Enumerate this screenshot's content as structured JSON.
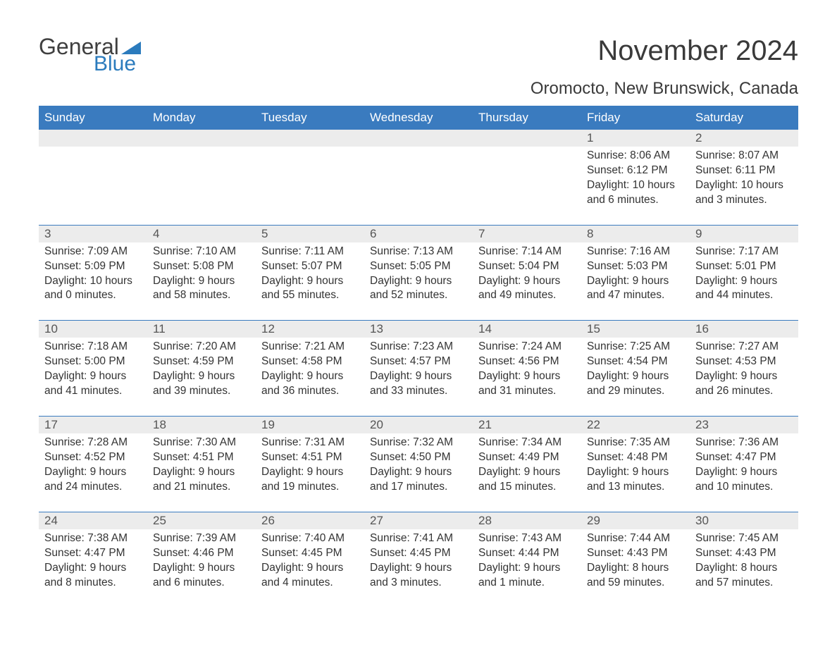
{
  "logo": {
    "word1": "General",
    "word2": "Blue"
  },
  "title": "November 2024",
  "location": "Oromocto, New Brunswick, Canada",
  "colors": {
    "header_bg": "#3a7bbf",
    "header_text": "#ffffff",
    "daynum_bg": "#ececec",
    "row_border": "#3a7bbf",
    "logo_blue": "#2b7bbd",
    "text": "#333333"
  },
  "day_headers": [
    "Sunday",
    "Monday",
    "Tuesday",
    "Wednesday",
    "Thursday",
    "Friday",
    "Saturday"
  ],
  "labels": {
    "sunrise": "Sunrise:",
    "sunset": "Sunset:",
    "daylight": "Daylight:"
  },
  "weeks": [
    [
      {
        "blank": true
      },
      {
        "blank": true
      },
      {
        "blank": true
      },
      {
        "blank": true
      },
      {
        "blank": true
      },
      {
        "n": "1",
        "sunrise": "8:06 AM",
        "sunset": "6:12 PM",
        "daylight": "10 hours and 6 minutes."
      },
      {
        "n": "2",
        "sunrise": "8:07 AM",
        "sunset": "6:11 PM",
        "daylight": "10 hours and 3 minutes."
      }
    ],
    [
      {
        "n": "3",
        "sunrise": "7:09 AM",
        "sunset": "5:09 PM",
        "daylight": "10 hours and 0 minutes."
      },
      {
        "n": "4",
        "sunrise": "7:10 AM",
        "sunset": "5:08 PM",
        "daylight": "9 hours and 58 minutes."
      },
      {
        "n": "5",
        "sunrise": "7:11 AM",
        "sunset": "5:07 PM",
        "daylight": "9 hours and 55 minutes."
      },
      {
        "n": "6",
        "sunrise": "7:13 AM",
        "sunset": "5:05 PM",
        "daylight": "9 hours and 52 minutes."
      },
      {
        "n": "7",
        "sunrise": "7:14 AM",
        "sunset": "5:04 PM",
        "daylight": "9 hours and 49 minutes."
      },
      {
        "n": "8",
        "sunrise": "7:16 AM",
        "sunset": "5:03 PM",
        "daylight": "9 hours and 47 minutes."
      },
      {
        "n": "9",
        "sunrise": "7:17 AM",
        "sunset": "5:01 PM",
        "daylight": "9 hours and 44 minutes."
      }
    ],
    [
      {
        "n": "10",
        "sunrise": "7:18 AM",
        "sunset": "5:00 PM",
        "daylight": "9 hours and 41 minutes."
      },
      {
        "n": "11",
        "sunrise": "7:20 AM",
        "sunset": "4:59 PM",
        "daylight": "9 hours and 39 minutes."
      },
      {
        "n": "12",
        "sunrise": "7:21 AM",
        "sunset": "4:58 PM",
        "daylight": "9 hours and 36 minutes."
      },
      {
        "n": "13",
        "sunrise": "7:23 AM",
        "sunset": "4:57 PM",
        "daylight": "9 hours and 33 minutes."
      },
      {
        "n": "14",
        "sunrise": "7:24 AM",
        "sunset": "4:56 PM",
        "daylight": "9 hours and 31 minutes."
      },
      {
        "n": "15",
        "sunrise": "7:25 AM",
        "sunset": "4:54 PM",
        "daylight": "9 hours and 29 minutes."
      },
      {
        "n": "16",
        "sunrise": "7:27 AM",
        "sunset": "4:53 PM",
        "daylight": "9 hours and 26 minutes."
      }
    ],
    [
      {
        "n": "17",
        "sunrise": "7:28 AM",
        "sunset": "4:52 PM",
        "daylight": "9 hours and 24 minutes."
      },
      {
        "n": "18",
        "sunrise": "7:30 AM",
        "sunset": "4:51 PM",
        "daylight": "9 hours and 21 minutes."
      },
      {
        "n": "19",
        "sunrise": "7:31 AM",
        "sunset": "4:51 PM",
        "daylight": "9 hours and 19 minutes."
      },
      {
        "n": "20",
        "sunrise": "7:32 AM",
        "sunset": "4:50 PM",
        "daylight": "9 hours and 17 minutes."
      },
      {
        "n": "21",
        "sunrise": "7:34 AM",
        "sunset": "4:49 PM",
        "daylight": "9 hours and 15 minutes."
      },
      {
        "n": "22",
        "sunrise": "7:35 AM",
        "sunset": "4:48 PM",
        "daylight": "9 hours and 13 minutes."
      },
      {
        "n": "23",
        "sunrise": "7:36 AM",
        "sunset": "4:47 PM",
        "daylight": "9 hours and 10 minutes."
      }
    ],
    [
      {
        "n": "24",
        "sunrise": "7:38 AM",
        "sunset": "4:47 PM",
        "daylight": "9 hours and 8 minutes."
      },
      {
        "n": "25",
        "sunrise": "7:39 AM",
        "sunset": "4:46 PM",
        "daylight": "9 hours and 6 minutes."
      },
      {
        "n": "26",
        "sunrise": "7:40 AM",
        "sunset": "4:45 PM",
        "daylight": "9 hours and 4 minutes."
      },
      {
        "n": "27",
        "sunrise": "7:41 AM",
        "sunset": "4:45 PM",
        "daylight": "9 hours and 3 minutes."
      },
      {
        "n": "28",
        "sunrise": "7:43 AM",
        "sunset": "4:44 PM",
        "daylight": "9 hours and 1 minute."
      },
      {
        "n": "29",
        "sunrise": "7:44 AM",
        "sunset": "4:43 PM",
        "daylight": "8 hours and 59 minutes."
      },
      {
        "n": "30",
        "sunrise": "7:45 AM",
        "sunset": "4:43 PM",
        "daylight": "8 hours and 57 minutes."
      }
    ]
  ]
}
